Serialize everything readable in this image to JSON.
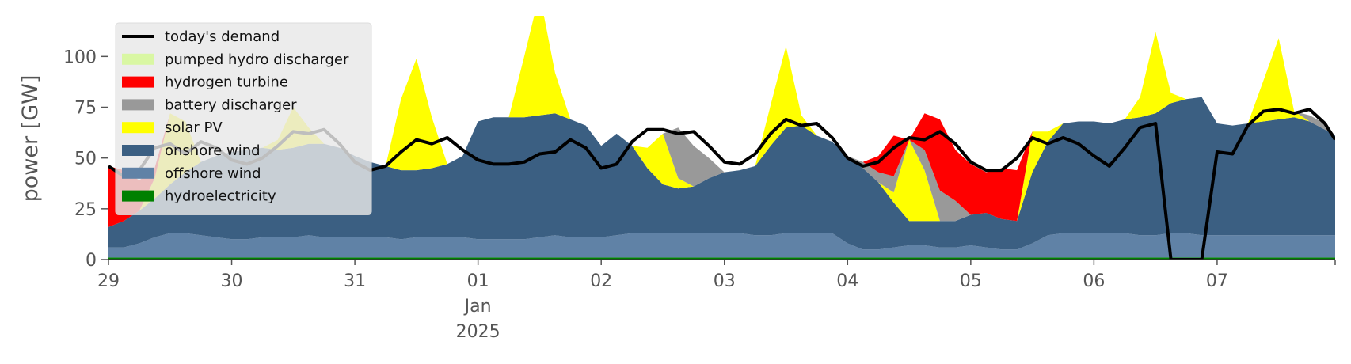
{
  "chart_data": {
    "type": "area",
    "ylabel": "power [GW]",
    "ylim": [
      0,
      120
    ],
    "y_ticks": [
      0,
      25,
      50,
      75,
      100
    ],
    "xlim": [
      "2024-12-29T00:00",
      "2025-01-07T23:00"
    ],
    "x_ticks": [
      {
        "x": "2024-12-29T00:00",
        "label": "29"
      },
      {
        "x": "2024-12-30T00:00",
        "label": "30"
      },
      {
        "x": "2024-12-31T00:00",
        "label": "31"
      },
      {
        "x": "2025-01-01T00:00",
        "label": "01",
        "label2": "Jan",
        "label3": "2025"
      },
      {
        "x": "2025-01-02T00:00",
        "label": "02"
      },
      {
        "x": "2025-01-03T00:00",
        "label": "03"
      },
      {
        "x": "2025-01-04T00:00",
        "label": "04"
      },
      {
        "x": "2025-01-05T00:00",
        "label": "05"
      },
      {
        "x": "2025-01-06T00:00",
        "label": "06"
      },
      {
        "x": "2025-01-07T00:00",
        "label": "07"
      }
    ],
    "grid": false,
    "legend_position": "top-left",
    "x": [
      "2024-12-29T00:00",
      "2024-12-29T03:00",
      "2024-12-29T06:00",
      "2024-12-29T09:00",
      "2024-12-29T12:00",
      "2024-12-29T15:00",
      "2024-12-29T18:00",
      "2024-12-29T21:00",
      "2024-12-30T00:00",
      "2024-12-30T03:00",
      "2024-12-30T06:00",
      "2024-12-30T09:00",
      "2024-12-30T12:00",
      "2024-12-30T15:00",
      "2024-12-30T18:00",
      "2024-12-30T21:00",
      "2024-12-31T00:00",
      "2024-12-31T03:00",
      "2024-12-31T06:00",
      "2024-12-31T09:00",
      "2024-12-31T12:00",
      "2024-12-31T15:00",
      "2024-12-31T18:00",
      "2024-12-31T21:00",
      "2025-01-01T00:00",
      "2025-01-01T03:00",
      "2025-01-01T06:00",
      "2025-01-01T09:00",
      "2025-01-01T12:00",
      "2025-01-01T15:00",
      "2025-01-01T18:00",
      "2025-01-01T21:00",
      "2025-01-02T00:00",
      "2025-01-02T03:00",
      "2025-01-02T06:00",
      "2025-01-02T09:00",
      "2025-01-02T12:00",
      "2025-01-02T15:00",
      "2025-01-02T18:00",
      "2025-01-02T21:00",
      "2025-01-03T00:00",
      "2025-01-03T03:00",
      "2025-01-03T06:00",
      "2025-01-03T09:00",
      "2025-01-03T12:00",
      "2025-01-03T15:00",
      "2025-01-03T18:00",
      "2025-01-03T21:00",
      "2025-01-04T00:00",
      "2025-01-04T03:00",
      "2025-01-04T06:00",
      "2025-01-04T09:00",
      "2025-01-04T12:00",
      "2025-01-04T15:00",
      "2025-01-04T18:00",
      "2025-01-04T21:00",
      "2025-01-05T00:00",
      "2025-01-05T03:00",
      "2025-01-05T06:00",
      "2025-01-05T09:00",
      "2025-01-05T12:00",
      "2025-01-05T15:00",
      "2025-01-05T18:00",
      "2025-01-05T21:00",
      "2025-01-06T00:00",
      "2025-01-06T03:00",
      "2025-01-06T06:00",
      "2025-01-06T09:00",
      "2025-01-06T12:00",
      "2025-01-06T15:00",
      "2025-01-06T18:00",
      "2025-01-06T21:00",
      "2025-01-07T00:00",
      "2025-01-07T03:00",
      "2025-01-07T06:00",
      "2025-01-07T09:00",
      "2025-01-07T12:00",
      "2025-01-07T15:00",
      "2025-01-07T18:00",
      "2025-01-07T21:00",
      "2025-01-07T23:00"
    ],
    "series": [
      {
        "name": "hydroelectricity",
        "kind": "area",
        "color": "#008000",
        "values": [
          1,
          1,
          1,
          1,
          1,
          1,
          1,
          1,
          1,
          1,
          1,
          1,
          1,
          1,
          1,
          1,
          1,
          1,
          1,
          1,
          1,
          1,
          1,
          1,
          1,
          1,
          1,
          1,
          1,
          1,
          1,
          1,
          1,
          1,
          1,
          1,
          1,
          1,
          1,
          1,
          1,
          1,
          1,
          1,
          1,
          1,
          1,
          1,
          1,
          1,
          1,
          1,
          1,
          1,
          1,
          1,
          1,
          1,
          1,
          1,
          1,
          1,
          1,
          1,
          1,
          1,
          1,
          1,
          1,
          1,
          1,
          1,
          1,
          1,
          1,
          1,
          1,
          1,
          1,
          1,
          1
        ]
      },
      {
        "name": "offshore wind",
        "kind": "area",
        "color": "#6082a6",
        "values": [
          5,
          5,
          7,
          10,
          12,
          12,
          11,
          10,
          9,
          9,
          10,
          10,
          10,
          11,
          10,
          10,
          10,
          10,
          10,
          9,
          10,
          10,
          10,
          10,
          9,
          9,
          9,
          9,
          10,
          11,
          10,
          10,
          10,
          11,
          12,
          12,
          12,
          12,
          12,
          12,
          12,
          12,
          11,
          11,
          12,
          12,
          12,
          12,
          7,
          4,
          4,
          5,
          6,
          6,
          5,
          5,
          6,
          5,
          4,
          4,
          7,
          11,
          12,
          12,
          12,
          12,
          12,
          11,
          11,
          12,
          12,
          11,
          11,
          11,
          11,
          11,
          11,
          11,
          11,
          11,
          11
        ]
      },
      {
        "name": "onshore wind",
        "kind": "area",
        "color": "#3b5f82",
        "values": [
          10,
          13,
          16,
          19,
          24,
          30,
          36,
          40,
          43,
          44,
          44,
          43,
          44,
          45,
          46,
          44,
          40,
          37,
          35,
          34,
          33,
          34,
          36,
          40,
          58,
          60,
          60,
          60,
          60,
          60,
          58,
          55,
          45,
          50,
          43,
          32,
          24,
          22,
          23,
          27,
          30,
          31,
          34,
          44,
          52,
          53,
          48,
          45,
          43,
          40,
          33,
          22,
          12,
          12,
          13,
          13,
          15,
          17,
          15,
          14,
          35,
          46,
          54,
          55,
          55,
          54,
          56,
          58,
          60,
          64,
          66,
          68,
          55,
          54,
          55,
          56,
          57,
          58,
          56,
          52,
          49
        ]
      },
      {
        "name": "solar PV",
        "kind": "area",
        "color": "#ffff00",
        "values": [
          0,
          0,
          0,
          10,
          35,
          25,
          0,
          0,
          0,
          0,
          0,
          5,
          20,
          8,
          0,
          0,
          0,
          0,
          0,
          35,
          55,
          25,
          0,
          0,
          0,
          0,
          0,
          30,
          60,
          20,
          0,
          0,
          0,
          0,
          0,
          10,
          25,
          5,
          0,
          0,
          0,
          0,
          0,
          20,
          40,
          5,
          0,
          0,
          0,
          0,
          0,
          5,
          40,
          25,
          0,
          0,
          0,
          0,
          0,
          0,
          20,
          5,
          0,
          0,
          0,
          0,
          0,
          10,
          40,
          5,
          0,
          0,
          0,
          0,
          0,
          20,
          40,
          3,
          0,
          0,
          0
        ]
      },
      {
        "name": "battery discharger",
        "kind": "area",
        "color": "#999999",
        "values": [
          0,
          0,
          0,
          0,
          0,
          0,
          0,
          0,
          0,
          0,
          0,
          0,
          0,
          0,
          0,
          0,
          0,
          0,
          0,
          0,
          0,
          0,
          0,
          0,
          0,
          0,
          0,
          0,
          0,
          0,
          0,
          0,
          0,
          0,
          0,
          0,
          0,
          25,
          20,
          10,
          0,
          0,
          0,
          0,
          0,
          0,
          0,
          0,
          0,
          3,
          5,
          8,
          0,
          10,
          15,
          10,
          0,
          0,
          0,
          0,
          0,
          0,
          0,
          0,
          0,
          0,
          0,
          0,
          0,
          0,
          0,
          0,
          0,
          0,
          0,
          0,
          0,
          0,
          3,
          3,
          0
        ]
      },
      {
        "name": "hydrogen turbine",
        "kind": "area",
        "color": "#ff0000",
        "values": [
          30,
          25,
          15,
          5,
          0,
          0,
          0,
          0,
          0,
          0,
          0,
          0,
          0,
          0,
          0,
          0,
          0,
          0,
          0,
          0,
          0,
          0,
          0,
          0,
          0,
          0,
          0,
          0,
          0,
          0,
          0,
          0,
          0,
          0,
          0,
          0,
          0,
          0,
          0,
          0,
          0,
          0,
          0,
          0,
          0,
          0,
          0,
          0,
          0,
          0,
          8,
          20,
          0,
          18,
          35,
          25,
          25,
          20,
          25,
          25,
          0,
          0,
          0,
          0,
          0,
          0,
          0,
          0,
          0,
          0,
          0,
          0,
          0,
          0,
          0,
          0,
          0,
          0,
          0,
          0,
          0
        ]
      },
      {
        "name": "pumped hydro discharger",
        "kind": "area",
        "color": "#d9f7a3",
        "values": [
          0,
          0,
          0,
          0,
          0,
          0,
          0,
          0,
          0,
          0,
          0,
          0,
          0,
          0,
          0,
          0,
          0,
          0,
          0,
          0,
          0,
          0,
          0,
          0,
          0,
          0,
          0,
          0,
          0,
          0,
          0,
          0,
          0,
          0,
          0,
          0,
          0,
          0,
          0,
          0,
          0,
          0,
          0,
          0,
          0,
          0,
          0,
          0,
          0,
          0,
          0,
          0,
          0,
          0,
          0,
          0,
          0,
          0,
          0,
          0,
          0,
          0,
          0,
          0,
          0,
          0,
          0,
          0,
          0,
          0,
          0,
          0,
          0,
          0,
          0,
          0,
          0,
          0,
          0,
          0,
          0
        ]
      },
      {
        "name": "today's demand",
        "kind": "line",
        "color": "#000000",
        "values": [
          46,
          41,
          44,
          55,
          57,
          52,
          58,
          55,
          49,
          47,
          50,
          56,
          63,
          62,
          64,
          57,
          48,
          44,
          46,
          53,
          59,
          57,
          60,
          54,
          49,
          47,
          47,
          48,
          52,
          53,
          59,
          55,
          45,
          47,
          58,
          64,
          64,
          62,
          63,
          56,
          48,
          47,
          52,
          62,
          69,
          66,
          67,
          60,
          50,
          46,
          48,
          55,
          60,
          59,
          63,
          57,
          48,
          44,
          44,
          50,
          60,
          57,
          60,
          57,
          51,
          46,
          55,
          65,
          67,
          0,
          0,
          0,
          53,
          52,
          66,
          73,
          74,
          72,
          74,
          67,
          59
        ]
      }
    ]
  }
}
